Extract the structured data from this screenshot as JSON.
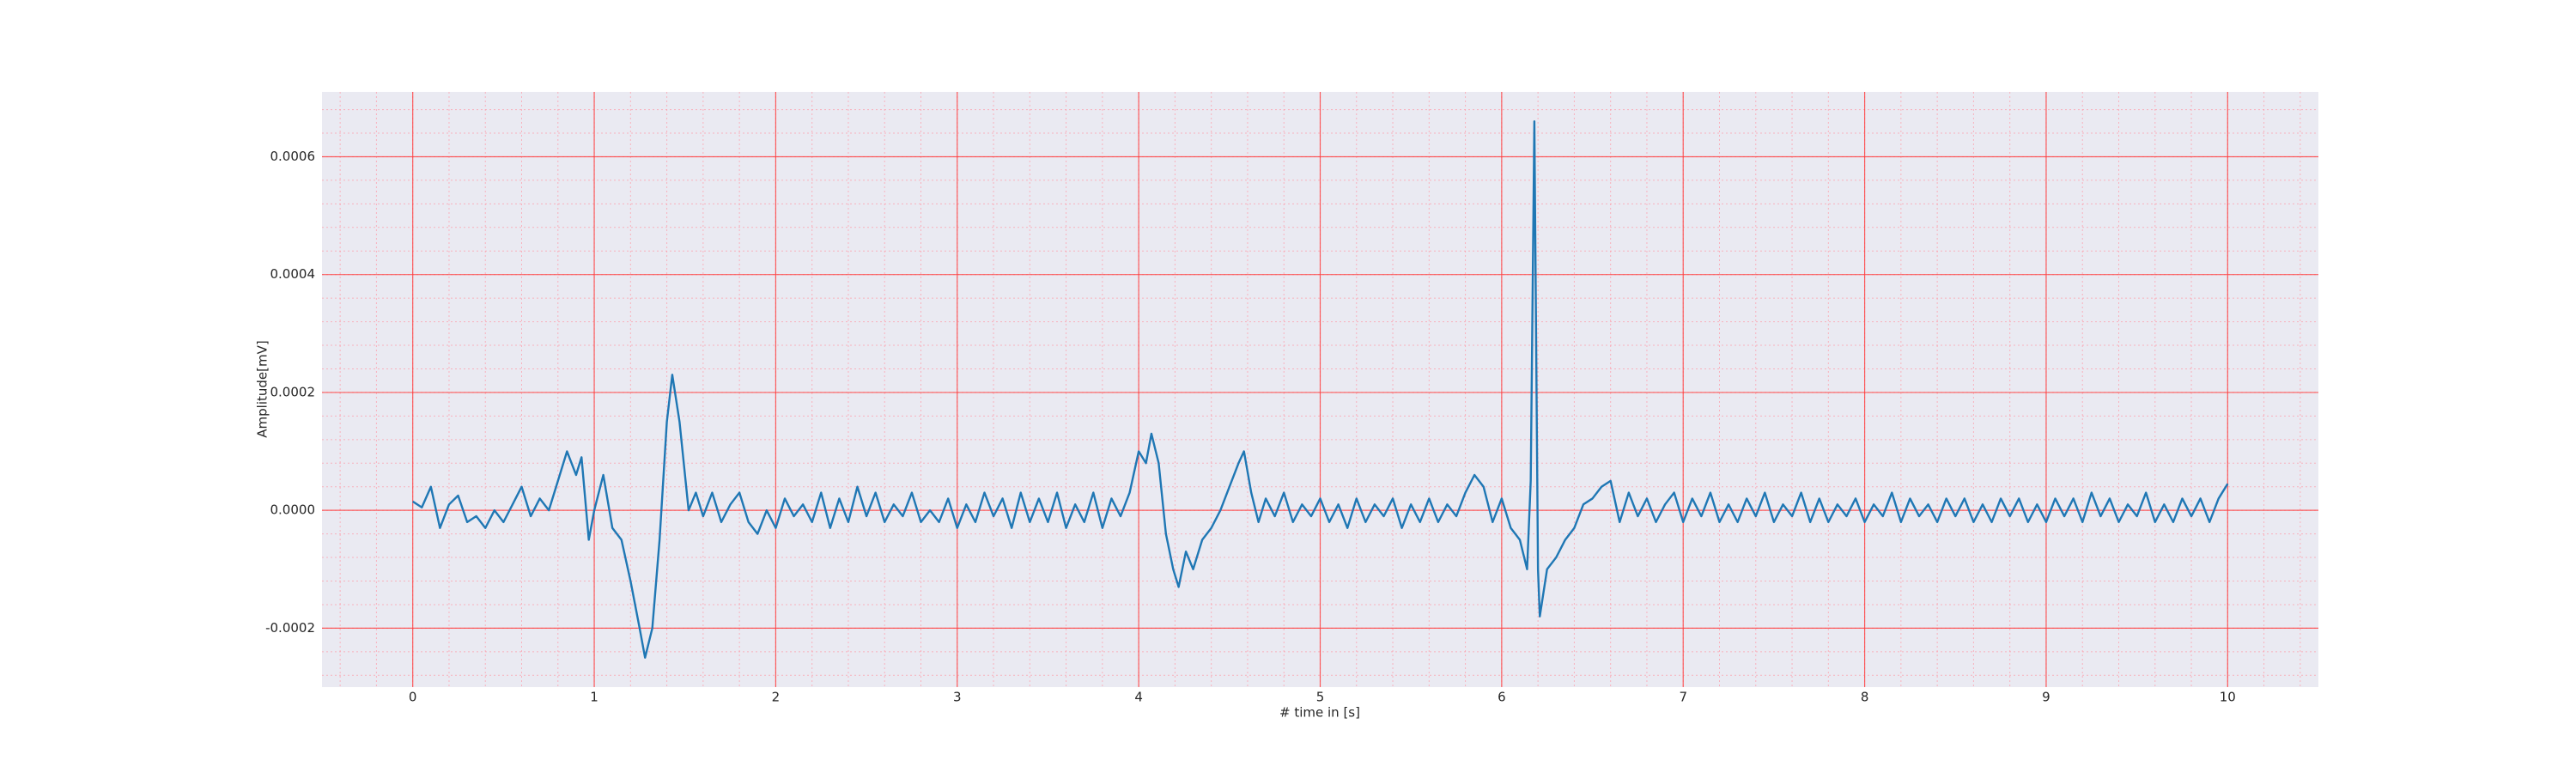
{
  "chart_data": {
    "type": "line",
    "xlabel": "# time in [s]",
    "ylabel": "Amplitude[mV]",
    "color": "#1f77b4",
    "grid": true,
    "minor_grid": true,
    "xlim": [
      -0.5,
      10.5
    ],
    "xticks": [
      0,
      1,
      2,
      3,
      4,
      5,
      6,
      7,
      8,
      9,
      10
    ],
    "ylim": [
      -0.0003,
      0.00071
    ],
    "yticks": [
      {
        "value": -0.0002,
        "label": "-0.0002"
      },
      {
        "value": 0,
        "label": "0.0000"
      },
      {
        "value": 0.0002,
        "label": "0.0002"
      },
      {
        "value": 0.0004,
        "label": "0.0004"
      },
      {
        "value": 0.0006,
        "label": "0.0006"
      }
    ],
    "x": [
      0,
      0.05,
      0.1,
      0.15,
      0.2,
      0.25,
      0.3,
      0.35,
      0.4,
      0.45,
      0.5,
      0.55,
      0.6,
      0.65,
      0.7,
      0.75,
      0.8,
      0.85,
      0.9,
      0.93,
      0.97,
      1.0,
      1.05,
      1.1,
      1.15,
      1.2,
      1.25,
      1.28,
      1.32,
      1.36,
      1.4,
      1.43,
      1.47,
      1.52,
      1.56,
      1.6,
      1.65,
      1.7,
      1.75,
      1.8,
      1.85,
      1.9,
      1.95,
      2.0,
      2.05,
      2.1,
      2.15,
      2.2,
      2.25,
      2.3,
      2.35,
      2.4,
      2.45,
      2.5,
      2.55,
      2.6,
      2.65,
      2.7,
      2.75,
      2.8,
      2.85,
      2.9,
      2.95,
      3.0,
      3.05,
      3.1,
      3.15,
      3.2,
      3.25,
      3.3,
      3.35,
      3.4,
      3.45,
      3.5,
      3.55,
      3.6,
      3.65,
      3.7,
      3.75,
      3.8,
      3.85,
      3.9,
      3.95,
      4.0,
      4.04,
      4.07,
      4.11,
      4.15,
      4.19,
      4.22,
      4.26,
      4.3,
      4.35,
      4.4,
      4.45,
      4.5,
      4.55,
      4.58,
      4.62,
      4.66,
      4.7,
      4.75,
      4.8,
      4.85,
      4.9,
      4.95,
      5.0,
      5.05,
      5.1,
      5.15,
      5.2,
      5.25,
      5.3,
      5.35,
      5.4,
      5.45,
      5.5,
      5.55,
      5.6,
      5.65,
      5.7,
      5.75,
      5.8,
      5.85,
      5.9,
      5.95,
      6.0,
      6.05,
      6.1,
      6.14,
      6.16,
      6.18,
      6.2,
      6.21,
      6.25,
      6.3,
      6.35,
      6.4,
      6.45,
      6.5,
      6.55,
      6.6,
      6.65,
      6.7,
      6.75,
      6.8,
      6.85,
      6.9,
      6.95,
      7.0,
      7.05,
      7.1,
      7.15,
      7.2,
      7.25,
      7.3,
      7.35,
      7.4,
      7.45,
      7.5,
      7.55,
      7.6,
      7.65,
      7.7,
      7.75,
      7.8,
      7.85,
      7.9,
      7.95,
      8.0,
      8.05,
      8.1,
      8.15,
      8.2,
      8.25,
      8.3,
      8.35,
      8.4,
      8.45,
      8.5,
      8.55,
      8.6,
      8.65,
      8.7,
      8.75,
      8.8,
      8.85,
      8.9,
      8.95,
      9.0,
      9.05,
      9.1,
      9.15,
      9.2,
      9.25,
      9.3,
      9.35,
      9.4,
      9.45,
      9.5,
      9.55,
      9.6,
      9.65,
      9.7,
      9.75,
      9.8,
      9.85,
      9.9,
      9.95,
      10.0
    ],
    "values": [
      1.5e-05,
      5e-06,
      4e-05,
      -3e-05,
      1e-05,
      2.5e-05,
      -2e-05,
      -1e-05,
      -3e-05,
      0,
      -2e-05,
      1e-05,
      4e-05,
      -1e-05,
      2e-05,
      0,
      5e-05,
      0.0001,
      6e-05,
      9e-05,
      -5e-05,
      0,
      6e-05,
      -3e-05,
      -5e-05,
      -0.00012,
      -0.0002,
      -0.00025,
      -0.0002,
      -5e-05,
      0.00015,
      0.00023,
      0.00015,
      0,
      3e-05,
      -1e-05,
      3e-05,
      -2e-05,
      1e-05,
      3e-05,
      -2e-05,
      -4e-05,
      0,
      -3e-05,
      2e-05,
      -1e-05,
      1e-05,
      -2e-05,
      3e-05,
      -3e-05,
      2e-05,
      -2e-05,
      4e-05,
      -1e-05,
      3e-05,
      -2e-05,
      1e-05,
      -1e-05,
      3e-05,
      -2e-05,
      0,
      -2e-05,
      2e-05,
      -3e-05,
      1e-05,
      -2e-05,
      3e-05,
      -1e-05,
      2e-05,
      -3e-05,
      3e-05,
      -2e-05,
      2e-05,
      -2e-05,
      3e-05,
      -3e-05,
      1e-05,
      -2e-05,
      3e-05,
      -3e-05,
      2e-05,
      -1e-05,
      3e-05,
      0.0001,
      8e-05,
      0.00013,
      8e-05,
      -4e-05,
      -0.0001,
      -0.00013,
      -7e-05,
      -0.0001,
      -5e-05,
      -3e-05,
      0,
      4e-05,
      8e-05,
      0.0001,
      3e-05,
      -2e-05,
      2e-05,
      -1e-05,
      3e-05,
      -2e-05,
      1e-05,
      -1e-05,
      2e-05,
      -2e-05,
      1e-05,
      -3e-05,
      2e-05,
      -2e-05,
      1e-05,
      -1e-05,
      2e-05,
      -3e-05,
      1e-05,
      -2e-05,
      2e-05,
      -2e-05,
      1e-05,
      -1e-05,
      3e-05,
      6e-05,
      4e-05,
      -2e-05,
      2e-05,
      -3e-05,
      -5e-05,
      -0.0001,
      5e-05,
      0.00066,
      -0.0001,
      -0.00018,
      -0.0001,
      -8e-05,
      -5e-05,
      -3e-05,
      1e-05,
      2e-05,
      4e-05,
      5e-05,
      -2e-05,
      3e-05,
      -1e-05,
      2e-05,
      -2e-05,
      1e-05,
      3e-05,
      -2e-05,
      2e-05,
      -1e-05,
      3e-05,
      -2e-05,
      1e-05,
      -2e-05,
      2e-05,
      -1e-05,
      3e-05,
      -2e-05,
      1e-05,
      -1e-05,
      3e-05,
      -2e-05,
      2e-05,
      -2e-05,
      1e-05,
      -1e-05,
      2e-05,
      -2e-05,
      1e-05,
      -1e-05,
      3e-05,
      -2e-05,
      2e-05,
      -1e-05,
      1e-05,
      -2e-05,
      2e-05,
      -1e-05,
      2e-05,
      -2e-05,
      1e-05,
      -2e-05,
      2e-05,
      -1e-05,
      2e-05,
      -2e-05,
      1e-05,
      -2e-05,
      2e-05,
      -1e-05,
      2e-05,
      -2e-05,
      3e-05,
      -1e-05,
      2e-05,
      -2e-05,
      1e-05,
      -1e-05,
      3e-05,
      -2e-05,
      1e-05,
      -2e-05,
      2e-05,
      -1e-05,
      2e-05,
      -2e-05,
      2e-05,
      4.5e-05
    ]
  }
}
